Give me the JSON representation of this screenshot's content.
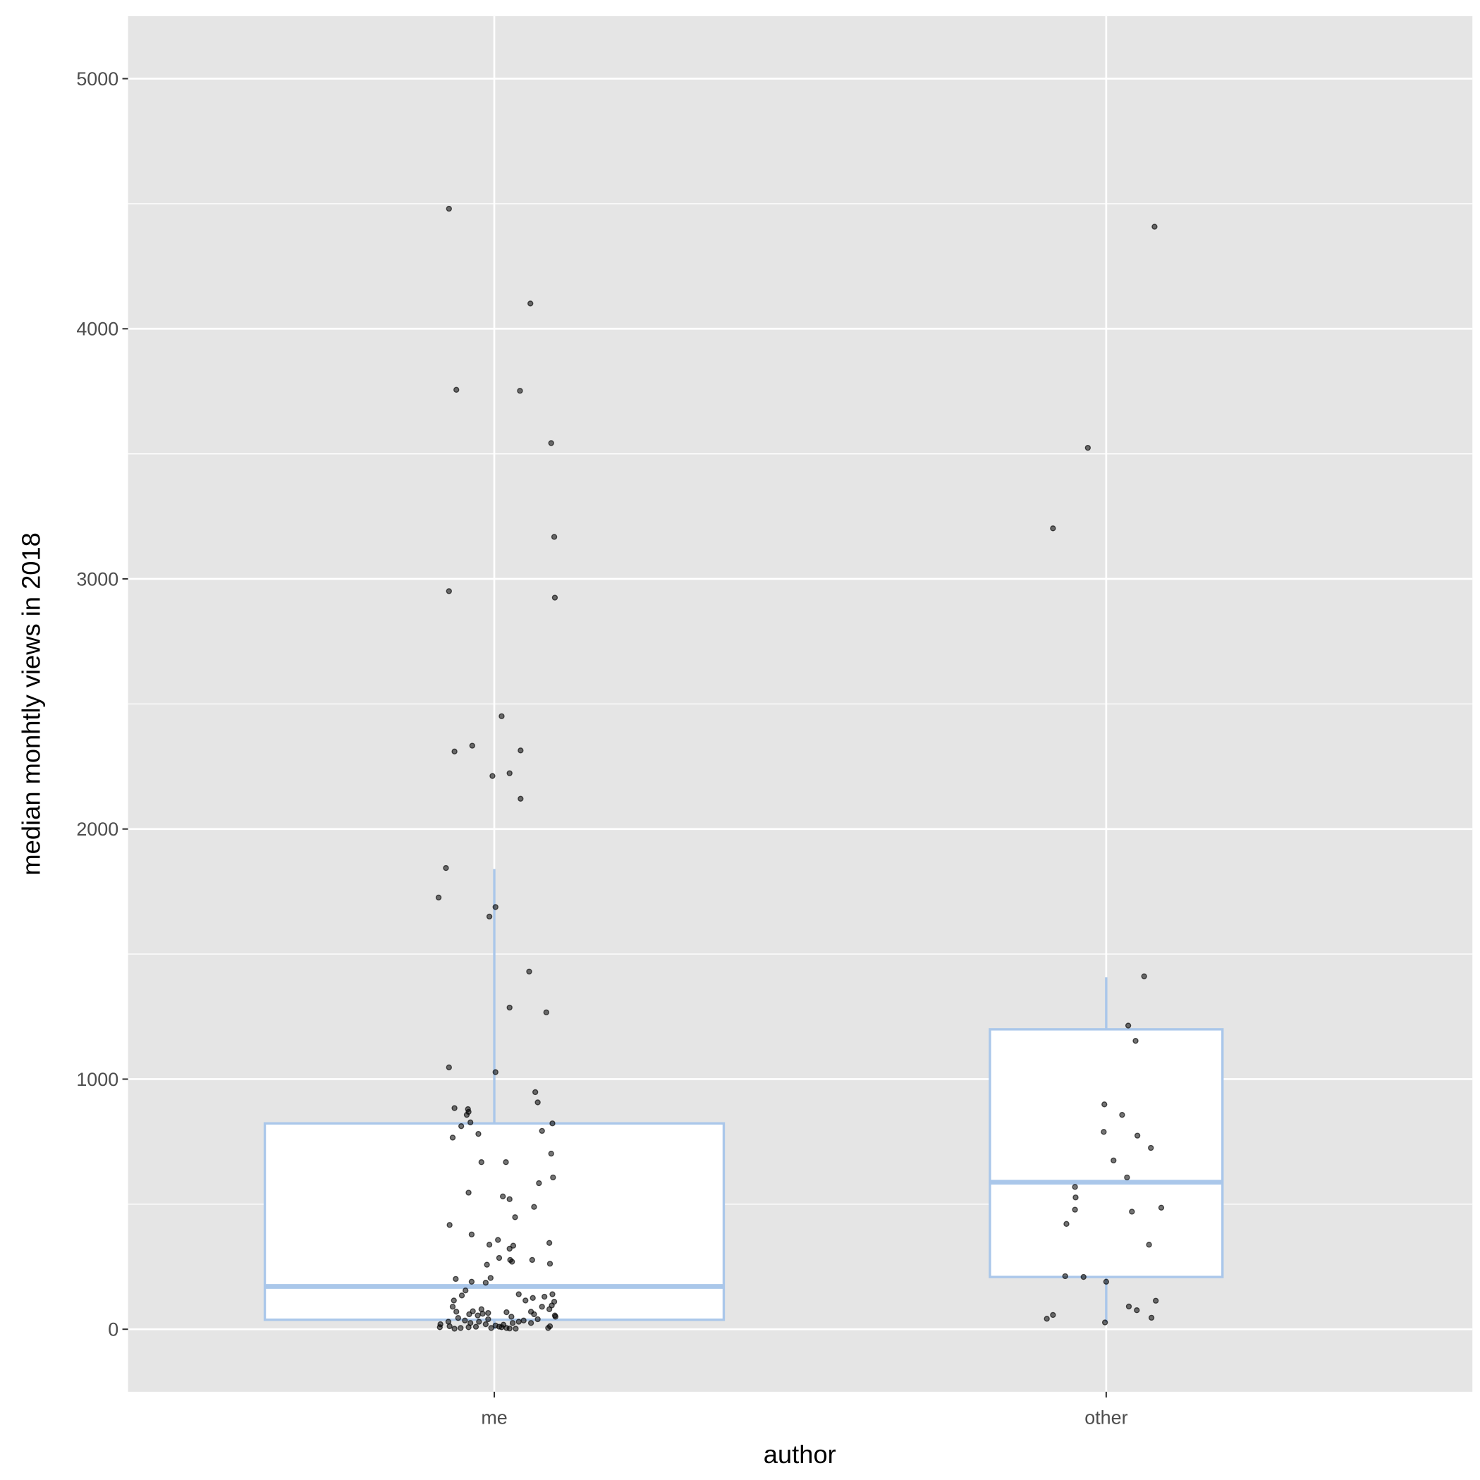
{
  "chart_data": {
    "type": "boxplot",
    "title": "",
    "xlabel": "author",
    "ylabel": "median monhtly views in 2018",
    "categories": [
      "me",
      "other"
    ],
    "ylim": [
      -250,
      5250
    ],
    "yticks": [
      0,
      1000,
      2000,
      3000,
      4000,
      5000
    ],
    "ytick_labels": [
      "0",
      "1000",
      "2000",
      "3000",
      "4000",
      "5000"
    ],
    "grid": true,
    "colors": {
      "panel": "#e5e5e5",
      "grid": "#ffffff",
      "box": "#aac7ea",
      "box_fill": "#ffffff",
      "point": "#000000"
    },
    "boxes": [
      {
        "category": "me",
        "lower_whisker": 0,
        "q1": 38,
        "median": 171,
        "q3": 823,
        "upper_whisker": 1840,
        "relative_width": 0.75
      },
      {
        "category": "other",
        "lower_whisker": 27,
        "q1": 209,
        "median": 588,
        "q3": 1199,
        "upper_whisker": 1407,
        "relative_width": 0.38
      }
    ],
    "points": [
      {
        "x": 0.926,
        "y": 4480
      },
      {
        "x": 1.059,
        "y": 4101
      },
      {
        "x": 0.938,
        "y": 3756
      },
      {
        "x": 1.042,
        "y": 3752
      },
      {
        "x": 1.093,
        "y": 3543
      },
      {
        "x": 1.098,
        "y": 3168
      },
      {
        "x": 0.926,
        "y": 2951
      },
      {
        "x": 1.099,
        "y": 2925
      },
      {
        "x": 1.012,
        "y": 2451
      },
      {
        "x": 0.964,
        "y": 2333
      },
      {
        "x": 0.935,
        "y": 2310
      },
      {
        "x": 1.043,
        "y": 2314
      },
      {
        "x": 1.025,
        "y": 2223
      },
      {
        "x": 0.997,
        "y": 2212
      },
      {
        "x": 1.043,
        "y": 2121
      },
      {
        "x": 0.921,
        "y": 1844
      },
      {
        "x": 0.909,
        "y": 1726
      },
      {
        "x": 1.002,
        "y": 1688
      },
      {
        "x": 0.992,
        "y": 1650
      },
      {
        "x": 1.057,
        "y": 1430
      },
      {
        "x": 1.025,
        "y": 1286
      },
      {
        "x": 1.085,
        "y": 1267
      },
      {
        "x": 0.926,
        "y": 1047
      },
      {
        "x": 1.002,
        "y": 1028
      },
      {
        "x": 1.067,
        "y": 948
      },
      {
        "x": 1.071,
        "y": 907
      },
      {
        "x": 0.935,
        "y": 884
      },
      {
        "x": 0.957,
        "y": 880
      },
      {
        "x": 0.958,
        "y": 869
      },
      {
        "x": 0.955,
        "y": 857
      },
      {
        "x": 1.095,
        "y": 823
      },
      {
        "x": 0.961,
        "y": 827
      },
      {
        "x": 0.946,
        "y": 812
      },
      {
        "x": 1.078,
        "y": 793
      },
      {
        "x": 0.974,
        "y": 781
      },
      {
        "x": 0.932,
        "y": 766
      },
      {
        "x": 1.093,
        "y": 702
      },
      {
        "x": 0.979,
        "y": 668
      },
      {
        "x": 1.019,
        "y": 668
      },
      {
        "x": 1.096,
        "y": 607
      },
      {
        "x": 1.073,
        "y": 584
      },
      {
        "x": 0.958,
        "y": 546
      },
      {
        "x": 1.014,
        "y": 531
      },
      {
        "x": 1.025,
        "y": 520
      },
      {
        "x": 1.065,
        "y": 489
      },
      {
        "x": 1.034,
        "y": 448
      },
      {
        "x": 0.927,
        "y": 417
      },
      {
        "x": 0.963,
        "y": 379
      },
      {
        "x": 1.006,
        "y": 357
      },
      {
        "x": 0.992,
        "y": 338
      },
      {
        "x": 1.09,
        "y": 345
      },
      {
        "x": 1.031,
        "y": 334
      },
      {
        "x": 1.025,
        "y": 322
      },
      {
        "x": 1.008,
        "y": 285
      },
      {
        "x": 1.026,
        "y": 277
      },
      {
        "x": 1.029,
        "y": 270
      },
      {
        "x": 1.062,
        "y": 277
      },
      {
        "x": 1.091,
        "y": 262
      },
      {
        "x": 0.988,
        "y": 258
      },
      {
        "x": 0.937,
        "y": 201
      },
      {
        "x": 0.994,
        "y": 205
      },
      {
        "x": 0.963,
        "y": 190
      },
      {
        "x": 0.986,
        "y": 186
      },
      {
        "x": 0.953,
        "y": 155
      },
      {
        "x": 0.947,
        "y": 135
      },
      {
        "x": 0.934,
        "y": 115
      },
      {
        "x": 0.932,
        "y": 90
      },
      {
        "x": 0.938,
        "y": 70
      },
      {
        "x": 0.959,
        "y": 60
      },
      {
        "x": 0.965,
        "y": 72
      },
      {
        "x": 0.973,
        "y": 55
      },
      {
        "x": 0.979,
        "y": 80
      },
      {
        "x": 0.981,
        "y": 62
      },
      {
        "x": 0.99,
        "y": 65
      },
      {
        "x": 1.02,
        "y": 68
      },
      {
        "x": 1.028,
        "y": 50
      },
      {
        "x": 1.04,
        "y": 140
      },
      {
        "x": 1.051,
        "y": 115
      },
      {
        "x": 1.063,
        "y": 125
      },
      {
        "x": 1.06,
        "y": 70
      },
      {
        "x": 1.078,
        "y": 90
      },
      {
        "x": 1.082,
        "y": 130
      },
      {
        "x": 1.095,
        "y": 140
      },
      {
        "x": 1.098,
        "y": 110
      },
      {
        "x": 1.094,
        "y": 95
      },
      {
        "x": 1.09,
        "y": 80
      },
      {
        "x": 1.099,
        "y": 55
      },
      {
        "x": 1.1,
        "y": 50
      },
      {
        "x": 1.071,
        "y": 40
      },
      {
        "x": 1.065,
        "y": 60
      },
      {
        "x": 1.048,
        "y": 35
      },
      {
        "x": 1.04,
        "y": 30
      },
      {
        "x": 1.03,
        "y": 25
      },
      {
        "x": 1.015,
        "y": 18
      },
      {
        "x": 1.008,
        "y": 10
      },
      {
        "x": 1.002,
        "y": 15
      },
      {
        "x": 0.995,
        "y": 5
      },
      {
        "x": 0.986,
        "y": 20
      },
      {
        "x": 0.975,
        "y": 30
      },
      {
        "x": 0.97,
        "y": 10
      },
      {
        "x": 0.961,
        "y": 25
      },
      {
        "x": 0.958,
        "y": 8
      },
      {
        "x": 0.945,
        "y": 5
      },
      {
        "x": 0.935,
        "y": 2
      },
      {
        "x": 0.927,
        "y": 12
      },
      {
        "x": 0.925,
        "y": 30
      },
      {
        "x": 0.912,
        "y": 20
      },
      {
        "x": 0.911,
        "y": 8
      },
      {
        "x": 0.99,
        "y": 40
      },
      {
        "x": 1.02,
        "y": 5
      },
      {
        "x": 1.025,
        "y": 3
      },
      {
        "x": 1.06,
        "y": 25
      },
      {
        "x": 1.088,
        "y": 5
      },
      {
        "x": 1.091,
        "y": 12
      },
      {
        "x": 0.941,
        "y": 45
      },
      {
        "x": 0.952,
        "y": 35
      },
      {
        "x": 1.035,
        "y": 2
      },
      {
        "x": 1.012,
        "y": 8
      },
      {
        "x": 2.079,
        "y": 4408
      },
      {
        "x": 1.97,
        "y": 3524
      },
      {
        "x": 1.913,
        "y": 3202
      },
      {
        "x": 2.062,
        "y": 1411
      },
      {
        "x": 2.036,
        "y": 1214
      },
      {
        "x": 2.048,
        "y": 1153
      },
      {
        "x": 1.997,
        "y": 899
      },
      {
        "x": 2.026,
        "y": 857
      },
      {
        "x": 1.996,
        "y": 789
      },
      {
        "x": 2.051,
        "y": 774
      },
      {
        "x": 2.073,
        "y": 725
      },
      {
        "x": 2.012,
        "y": 675
      },
      {
        "x": 2.034,
        "y": 607
      },
      {
        "x": 1.949,
        "y": 569
      },
      {
        "x": 1.95,
        "y": 527
      },
      {
        "x": 1.949,
        "y": 478
      },
      {
        "x": 2.09,
        "y": 486
      },
      {
        "x": 2.042,
        "y": 470
      },
      {
        "x": 1.935,
        "y": 421
      },
      {
        "x": 2.07,
        "y": 338
      },
      {
        "x": 1.933,
        "y": 212
      },
      {
        "x": 1.963,
        "y": 209
      },
      {
        "x": 2.0,
        "y": 190
      },
      {
        "x": 2.081,
        "y": 114
      },
      {
        "x": 2.037,
        "y": 91
      },
      {
        "x": 2.05,
        "y": 76
      },
      {
        "x": 1.913,
        "y": 57
      },
      {
        "x": 1.903,
        "y": 42
      },
      {
        "x": 2.074,
        "y": 46
      },
      {
        "x": 1.998,
        "y": 27
      }
    ]
  }
}
